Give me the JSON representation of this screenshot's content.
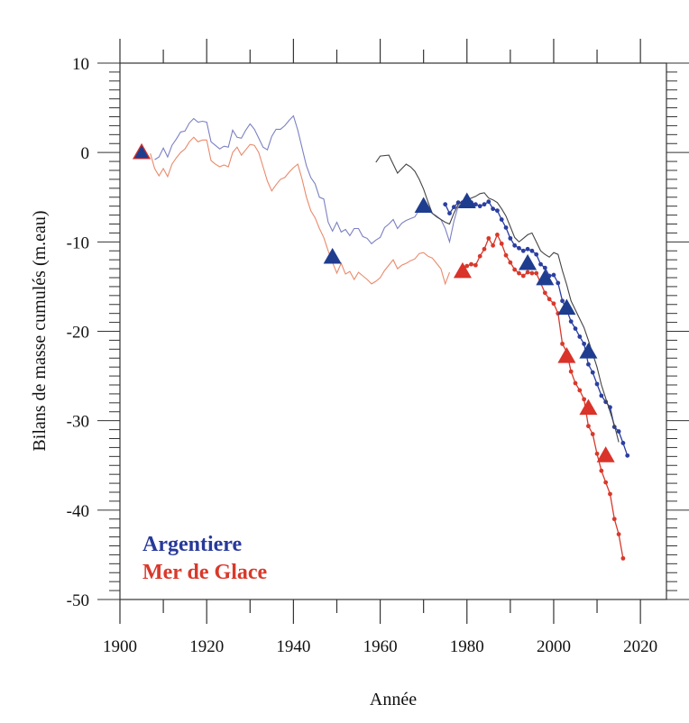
{
  "chart_data": {
    "type": "line",
    "xlabel": "Année",
    "ylabel": "Bilans de masse cumulés (m.eau)",
    "xlim": [
      1900,
      2026
    ],
    "ylim": [
      -50,
      10
    ],
    "x_ticks": [
      1900,
      1920,
      1940,
      1960,
      1980,
      2000,
      2020
    ],
    "y_ticks": [
      10,
      0,
      -10,
      -20,
      -30,
      -40,
      -50
    ],
    "grid": false,
    "legend_placement": "bottom-left",
    "legend": [
      {
        "label": "Argentiere",
        "color": "#27399a"
      },
      {
        "label": "Mer de Glace",
        "color": "#d8392b"
      }
    ],
    "series": [
      {
        "name": "Argentiere",
        "style": "thin",
        "color": "#7b80c2",
        "points": [
          [
            1908,
            -0.8
          ],
          [
            1909,
            -0.5
          ],
          [
            1910,
            0.5
          ],
          [
            1911,
            -0.5
          ],
          [
            1912,
            0.8
          ],
          [
            1913,
            1.5
          ],
          [
            1914,
            2.3
          ],
          [
            1915,
            2.4
          ],
          [
            1916,
            3.3
          ],
          [
            1917,
            3.8
          ],
          [
            1918,
            3.4
          ],
          [
            1919,
            3.5
          ],
          [
            1920,
            3.4
          ],
          [
            1921,
            1.2
          ],
          [
            1922,
            0.8
          ],
          [
            1923,
            0.4
          ],
          [
            1924,
            0.7
          ],
          [
            1925,
            0.6
          ],
          [
            1926,
            2.5
          ],
          [
            1927,
            1.7
          ],
          [
            1928,
            1.6
          ],
          [
            1929,
            2.5
          ],
          [
            1930,
            3.2
          ],
          [
            1931,
            2.6
          ],
          [
            1932,
            1.6
          ],
          [
            1933,
            0.6
          ],
          [
            1934,
            0.3
          ],
          [
            1935,
            1.8
          ],
          [
            1936,
            2.6
          ],
          [
            1937,
            2.6
          ],
          [
            1938,
            3.0
          ],
          [
            1939,
            3.6
          ],
          [
            1940,
            4.1
          ],
          [
            1941,
            2.5
          ],
          [
            1942,
            0.5
          ],
          [
            1943,
            -1.5
          ],
          [
            1944,
            -2.8
          ],
          [
            1945,
            -3.5
          ],
          [
            1946,
            -5.0
          ],
          [
            1947,
            -5.2
          ],
          [
            1948,
            -7.8
          ],
          [
            1949,
            -8.8
          ],
          [
            1950,
            -7.8
          ],
          [
            1951,
            -8.9
          ],
          [
            1952,
            -8.6
          ],
          [
            1953,
            -9.3
          ],
          [
            1954,
            -8.5
          ],
          [
            1955,
            -8.5
          ],
          [
            1956,
            -9.4
          ],
          [
            1957,
            -9.6
          ],
          [
            1958,
            -10.2
          ],
          [
            1959,
            -9.8
          ],
          [
            1960,
            -9.5
          ],
          [
            1961,
            -8.4
          ],
          [
            1962,
            -8.0
          ],
          [
            1963,
            -7.5
          ],
          [
            1964,
            -8.5
          ],
          [
            1965,
            -7.9
          ],
          [
            1966,
            -7.6
          ],
          [
            1967,
            -7.4
          ],
          [
            1968,
            -7.2
          ],
          [
            1969,
            -6.4
          ],
          [
            1970,
            -6.3
          ],
          [
            1971,
            -6.5
          ],
          [
            1972,
            -6.8
          ],
          [
            1973,
            -7.1
          ],
          [
            1974,
            -7.5
          ],
          [
            1975,
            -8.5
          ],
          [
            1976,
            -10.0
          ],
          [
            1977,
            -7.7
          ],
          [
            1978,
            -6.0
          ],
          [
            1979,
            -5.7
          ],
          [
            1980,
            -5.5
          ]
        ]
      },
      {
        "name": "Mer de Glace",
        "style": "thin",
        "color": "#e98a6c",
        "points": [
          [
            1907,
            -0.1
          ],
          [
            1908,
            -1.8
          ],
          [
            1909,
            -2.6
          ],
          [
            1910,
            -1.8
          ],
          [
            1911,
            -2.7
          ],
          [
            1912,
            -1.3
          ],
          [
            1913,
            -0.6
          ],
          [
            1914,
            0.0
          ],
          [
            1915,
            0.4
          ],
          [
            1916,
            1.2
          ],
          [
            1917,
            1.7
          ],
          [
            1918,
            1.2
          ],
          [
            1919,
            1.4
          ],
          [
            1920,
            1.4
          ],
          [
            1921,
            -0.9
          ],
          [
            1922,
            -1.3
          ],
          [
            1923,
            -1.6
          ],
          [
            1924,
            -1.4
          ],
          [
            1925,
            -1.6
          ],
          [
            1926,
            0.0
          ],
          [
            1927,
            0.6
          ],
          [
            1928,
            -0.3
          ],
          [
            1929,
            0.3
          ],
          [
            1930,
            0.9
          ],
          [
            1931,
            0.8
          ],
          [
            1932,
            0.0
          ],
          [
            1933,
            -1.6
          ],
          [
            1934,
            -3.2
          ],
          [
            1935,
            -4.3
          ],
          [
            1936,
            -3.6
          ],
          [
            1937,
            -3.0
          ],
          [
            1938,
            -2.8
          ],
          [
            1939,
            -2.2
          ],
          [
            1940,
            -1.7
          ],
          [
            1941,
            -1.3
          ],
          [
            1942,
            -3.0
          ],
          [
            1943,
            -5.0
          ],
          [
            1944,
            -6.5
          ],
          [
            1945,
            -7.3
          ],
          [
            1946,
            -8.5
          ],
          [
            1947,
            -9.5
          ],
          [
            1948,
            -11.0
          ],
          [
            1949,
            -12.3
          ],
          [
            1950,
            -13.5
          ],
          [
            1951,
            -12.4
          ],
          [
            1952,
            -13.6
          ],
          [
            1953,
            -13.3
          ],
          [
            1954,
            -14.2
          ],
          [
            1955,
            -13.4
          ],
          [
            1956,
            -13.8
          ],
          [
            1957,
            -14.2
          ],
          [
            1958,
            -14.7
          ],
          [
            1959,
            -14.4
          ],
          [
            1960,
            -14.0
          ],
          [
            1961,
            -13.2
          ],
          [
            1962,
            -12.6
          ],
          [
            1963,
            -12.0
          ],
          [
            1964,
            -13.0
          ],
          [
            1965,
            -12.6
          ],
          [
            1966,
            -12.4
          ],
          [
            1967,
            -12.1
          ],
          [
            1968,
            -11.9
          ],
          [
            1969,
            -11.3
          ],
          [
            1970,
            -11.2
          ],
          [
            1971,
            -11.6
          ],
          [
            1972,
            -11.8
          ],
          [
            1973,
            -12.4
          ],
          [
            1974,
            -13.0
          ],
          [
            1975,
            -14.7
          ],
          [
            1976,
            -13.4
          ]
        ]
      },
      {
        "name": "Argentiere",
        "style": "dots",
        "color": "#2b3fa0",
        "points": [
          [
            1975,
            -5.8
          ],
          [
            1976,
            -6.8
          ],
          [
            1977,
            -6.1
          ],
          [
            1978,
            -5.6
          ],
          [
            1979,
            -5.6
          ],
          [
            1980,
            -5.5
          ],
          [
            1981,
            -5.6
          ],
          [
            1982,
            -5.8
          ],
          [
            1983,
            -6.0
          ],
          [
            1984,
            -5.8
          ],
          [
            1985,
            -5.5
          ],
          [
            1986,
            -6.3
          ],
          [
            1987,
            -6.5
          ],
          [
            1988,
            -7.5
          ],
          [
            1989,
            -8.4
          ],
          [
            1990,
            -9.6
          ],
          [
            1991,
            -10.4
          ],
          [
            1992,
            -10.7
          ],
          [
            1993,
            -11.0
          ],
          [
            1994,
            -10.8
          ],
          [
            1995,
            -11.0
          ],
          [
            1996,
            -11.4
          ],
          [
            1997,
            -12.5
          ],
          [
            1998,
            -12.9
          ],
          [
            1999,
            -13.8
          ],
          [
            2000,
            -13.7
          ],
          [
            2001,
            -14.6
          ],
          [
            2002,
            -16.6
          ],
          [
            2003,
            -17.6
          ],
          [
            2004,
            -18.9
          ],
          [
            2005,
            -19.7
          ],
          [
            2006,
            -20.6
          ],
          [
            2007,
            -21.4
          ],
          [
            2008,
            -23.7
          ],
          [
            2009,
            -24.6
          ],
          [
            2010,
            -25.9
          ],
          [
            2011,
            -27.2
          ],
          [
            2012,
            -27.9
          ],
          [
            2013,
            -28.5
          ],
          [
            2014,
            -30.7
          ],
          [
            2015,
            -31.2
          ],
          [
            2016,
            -32.5
          ],
          [
            2017,
            -33.9
          ]
        ]
      },
      {
        "name": "Mer de Glace",
        "style": "dots",
        "color": "#d8392b",
        "points": [
          [
            1979,
            -13.2
          ],
          [
            1980,
            -12.7
          ],
          [
            1981,
            -12.5
          ],
          [
            1982,
            -12.6
          ],
          [
            1983,
            -11.6
          ],
          [
            1984,
            -10.8
          ],
          [
            1985,
            -9.6
          ],
          [
            1986,
            -10.4
          ],
          [
            1987,
            -9.2
          ],
          [
            1988,
            -10.2
          ],
          [
            1989,
            -11.5
          ],
          [
            1990,
            -12.3
          ],
          [
            1991,
            -13.1
          ],
          [
            1992,
            -13.5
          ],
          [
            1993,
            -13.8
          ],
          [
            1994,
            -13.4
          ],
          [
            1995,
            -13.5
          ],
          [
            1996,
            -13.5
          ],
          [
            1997,
            -14.6
          ],
          [
            1998,
            -15.7
          ],
          [
            1999,
            -16.4
          ],
          [
            2000,
            -16.9
          ],
          [
            2001,
            -18.0
          ],
          [
            2002,
            -21.4
          ],
          [
            2003,
            -22.3
          ],
          [
            2004,
            -24.5
          ],
          [
            2005,
            -25.8
          ],
          [
            2006,
            -26.6
          ],
          [
            2007,
            -27.6
          ],
          [
            2008,
            -30.6
          ],
          [
            2009,
            -31.5
          ],
          [
            2010,
            -33.7
          ],
          [
            2011,
            -35.6
          ],
          [
            2012,
            -36.9
          ],
          [
            2013,
            -38.2
          ],
          [
            2014,
            -41.0
          ],
          [
            2015,
            -42.7
          ],
          [
            2016,
            -45.4
          ]
        ]
      },
      {
        "style": "thin",
        "color": "#444444",
        "points": [
          [
            1959,
            -1.1
          ],
          [
            1960,
            -0.4
          ],
          [
            1962,
            -0.3
          ],
          [
            1963,
            -1.3
          ],
          [
            1964,
            -2.3
          ],
          [
            1965,
            -1.8
          ],
          [
            1966,
            -1.3
          ],
          [
            1967,
            -1.6
          ],
          [
            1968,
            -2.1
          ],
          [
            1969,
            -3.0
          ],
          [
            1970,
            -4.1
          ],
          [
            1971,
            -5.5
          ],
          [
            1972,
            -6.8
          ],
          [
            1973,
            -7.2
          ],
          [
            1974,
            -7.5
          ],
          [
            1975,
            -7.8
          ],
          [
            1976,
            -8.0
          ],
          [
            1977,
            -6.8
          ],
          [
            1978,
            -5.8
          ],
          [
            1979,
            -5.5
          ],
          [
            1980,
            -5.3
          ],
          [
            1981,
            -5.1
          ],
          [
            1982,
            -4.9
          ],
          [
            1983,
            -4.6
          ],
          [
            1984,
            -4.5
          ],
          [
            1985,
            -5.1
          ],
          [
            1986,
            -5.3
          ],
          [
            1987,
            -5.6
          ],
          [
            1988,
            -6.3
          ],
          [
            1989,
            -7.1
          ],
          [
            1990,
            -8.3
          ],
          [
            1991,
            -9.5
          ],
          [
            1992,
            -10.0
          ],
          [
            1993,
            -9.6
          ],
          [
            1994,
            -9.2
          ],
          [
            1995,
            -9.0
          ],
          [
            1996,
            -10.0
          ],
          [
            1997,
            -11.0
          ],
          [
            1998,
            -11.4
          ],
          [
            1999,
            -11.7
          ],
          [
            2000,
            -11.2
          ],
          [
            2001,
            -11.4
          ],
          [
            2002,
            -13.2
          ],
          [
            2003,
            -14.8
          ],
          [
            2004,
            -16.6
          ],
          [
            2005,
            -17.6
          ],
          [
            2006,
            -18.6
          ],
          [
            2007,
            -19.6
          ],
          [
            2008,
            -21.0
          ],
          [
            2009,
            -22.5
          ],
          [
            2010,
            -24.0
          ],
          [
            2011,
            -26.0
          ],
          [
            2012,
            -27.5
          ],
          [
            2013,
            -29.0
          ],
          [
            2014,
            -30.5
          ],
          [
            2015,
            -32.4
          ]
        ]
      }
    ],
    "markers": {
      "Argentiere": {
        "color": "#1f3d8f",
        "points": [
          [
            1905,
            0
          ],
          [
            1949,
            -11.7
          ],
          [
            1970,
            -6.0
          ],
          [
            1980,
            -5.5
          ],
          [
            1994,
            -12.4
          ],
          [
            1998,
            -14.1
          ],
          [
            2003,
            -17.4
          ],
          [
            2008,
            -22.3
          ]
        ]
      },
      "Mer de Glace": {
        "color": "#d9332a",
        "points": [
          [
            1905,
            0
          ],
          [
            1979,
            -13.3
          ],
          [
            2003,
            -22.8
          ],
          [
            2008,
            -28.6
          ],
          [
            2012,
            -33.9
          ]
        ]
      }
    }
  }
}
